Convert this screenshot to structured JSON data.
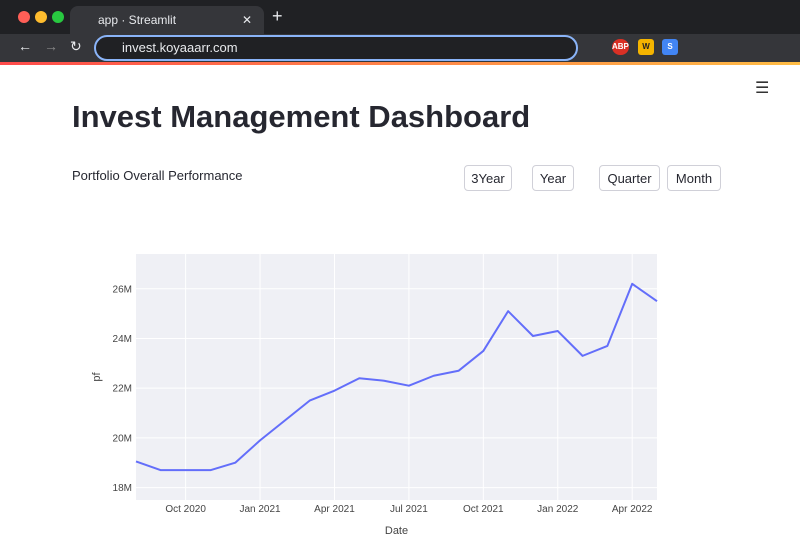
{
  "browser": {
    "tab_title": "app · Streamlit",
    "url": "invest.koyaaarr.com",
    "extensions": [
      "ABP",
      "W",
      "S"
    ]
  },
  "app": {
    "title": "Invest Management Dashboard",
    "subtitle": "Portfolio Overall Performance",
    "buttons": [
      "3Year",
      "Year",
      "Quarter",
      "Month"
    ]
  },
  "chart_data": {
    "type": "line",
    "x": [
      "2020-08",
      "2020-09",
      "2020-10",
      "2020-11",
      "2020-12",
      "2021-01",
      "2021-02",
      "2021-03",
      "2021-04",
      "2021-05",
      "2021-06",
      "2021-07",
      "2021-08",
      "2021-09",
      "2021-10",
      "2021-11",
      "2021-12",
      "2022-01",
      "2022-02",
      "2022-03",
      "2022-04",
      "2022-05"
    ],
    "series": [
      {
        "name": "pf",
        "color": "#636efa",
        "values": [
          19.05,
          18.7,
          18.7,
          18.7,
          19.0,
          19.9,
          20.7,
          21.5,
          21.9,
          22.4,
          22.3,
          22.1,
          22.5,
          22.7,
          23.5,
          25.1,
          24.1,
          24.3,
          23.3,
          23.7,
          26.2,
          25.5
        ]
      }
    ],
    "xlabel": "Date",
    "ylabel": "pf",
    "xlim": [
      "2020-08",
      "2022-05"
    ],
    "xticks": [
      {
        "value": "2020-10",
        "label": "Oct 2020"
      },
      {
        "value": "2021-01",
        "label": "Jan 2021"
      },
      {
        "value": "2021-04",
        "label": "Apr 2021"
      },
      {
        "value": "2021-07",
        "label": "Jul 2021"
      },
      {
        "value": "2021-10",
        "label": "Oct 2021"
      },
      {
        "value": "2022-01",
        "label": "Jan 2022"
      },
      {
        "value": "2022-04",
        "label": "Apr 2022"
      }
    ],
    "ylim": [
      17.5,
      27.4
    ],
    "yticks": [
      {
        "value": 18,
        "label": "18M"
      },
      {
        "value": 20,
        "label": "20M"
      },
      {
        "value": 22,
        "label": "22M"
      },
      {
        "value": 24,
        "label": "24M"
      },
      {
        "value": 26,
        "label": "26M"
      }
    ],
    "grid": true,
    "plot_bg": "#eff0f5"
  }
}
